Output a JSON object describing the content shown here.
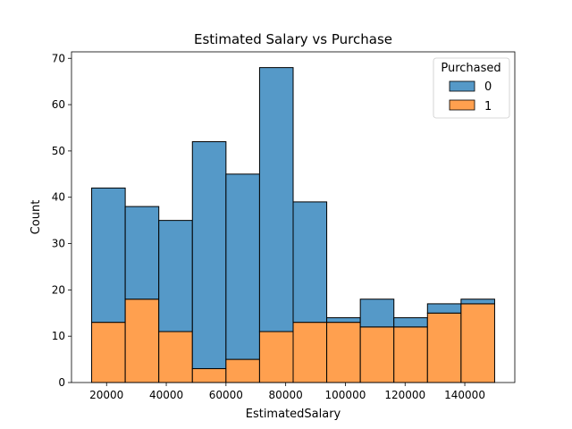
{
  "chart_data": {
    "type": "bar",
    "title": "Estimated Salary vs Purchase",
    "xlabel": "EstimatedSalary",
    "ylabel": "Count",
    "xlim": [
      8250,
      156750
    ],
    "ylim": [
      0,
      71.4
    ],
    "xticks": [
      20000,
      40000,
      60000,
      80000,
      100000,
      120000,
      140000
    ],
    "yticks": [
      0,
      10,
      20,
      30,
      40,
      50,
      60,
      70
    ],
    "bin_edges": [
      15000,
      26250,
      37500,
      48750,
      60000,
      71250,
      82500,
      93750,
      105000,
      116250,
      127500,
      138750,
      150000
    ],
    "stacked": true,
    "series": [
      {
        "name": "0",
        "color": "#5599c8",
        "values": [
          29,
          20,
          24,
          49,
          40,
          57,
          26,
          1,
          6,
          2,
          2,
          1
        ]
      },
      {
        "name": "1",
        "color": "#ffa04f",
        "values": [
          13,
          18,
          11,
          3,
          5,
          11,
          13,
          13,
          12,
          12,
          15,
          17
        ]
      }
    ],
    "legend": {
      "title": "Purchased",
      "placement": "top-right"
    },
    "grid": false
  }
}
